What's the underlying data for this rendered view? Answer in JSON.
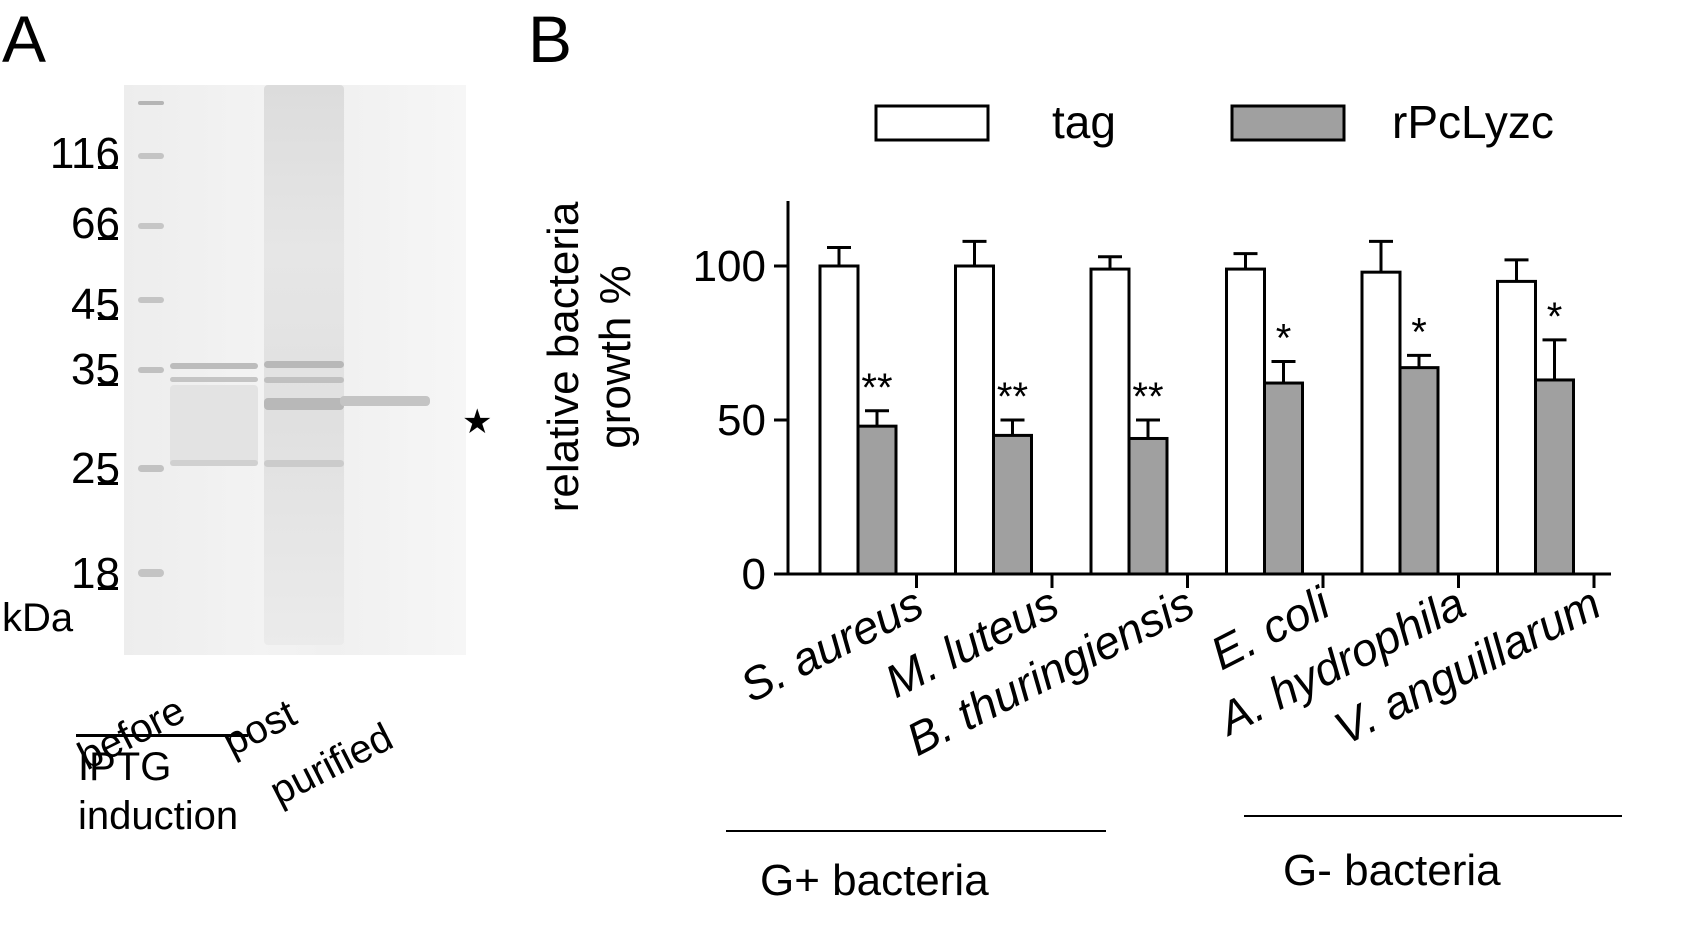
{
  "panel_a": {
    "label": "A",
    "markers": [
      "116",
      "66",
      "45",
      "35",
      "25",
      "18"
    ],
    "unit": "kDa",
    "lanes": [
      "before",
      "post",
      "purified"
    ],
    "group_label_line1": "IPTG",
    "group_label_line2": "induction",
    "band_marker": "★"
  },
  "panel_b": {
    "label": "B",
    "groups": [
      "G+ bacteria",
      "G- bacteria"
    ]
  },
  "chart_data": {
    "type": "bar",
    "title": "",
    "ylabel_line1": "relative bacteria",
    "ylabel_line2": "growth %",
    "xlabel": "",
    "ylim": [
      0,
      120
    ],
    "yticks": [
      "0",
      "50",
      "100"
    ],
    "legend_position": "top",
    "categories": [
      "S. aureus",
      "M. luteus",
      "B. thuringiensis",
      "E. coli",
      "A. hydrophila",
      "V. anguillarum"
    ],
    "series": [
      {
        "name": "tag",
        "color": "#ffffff",
        "values": [
          100,
          100,
          99,
          99,
          98,
          95
        ],
        "errors": [
          6,
          8,
          4,
          5,
          10,
          7
        ]
      },
      {
        "name": "rPcLyzc",
        "color": "#a0a0a0",
        "values": [
          48,
          45,
          44,
          62,
          67,
          63
        ],
        "errors": [
          5,
          5,
          6,
          7,
          4,
          13
        ]
      }
    ],
    "significance": [
      "**",
      "**",
      "**",
      "*",
      "*",
      "*"
    ]
  }
}
